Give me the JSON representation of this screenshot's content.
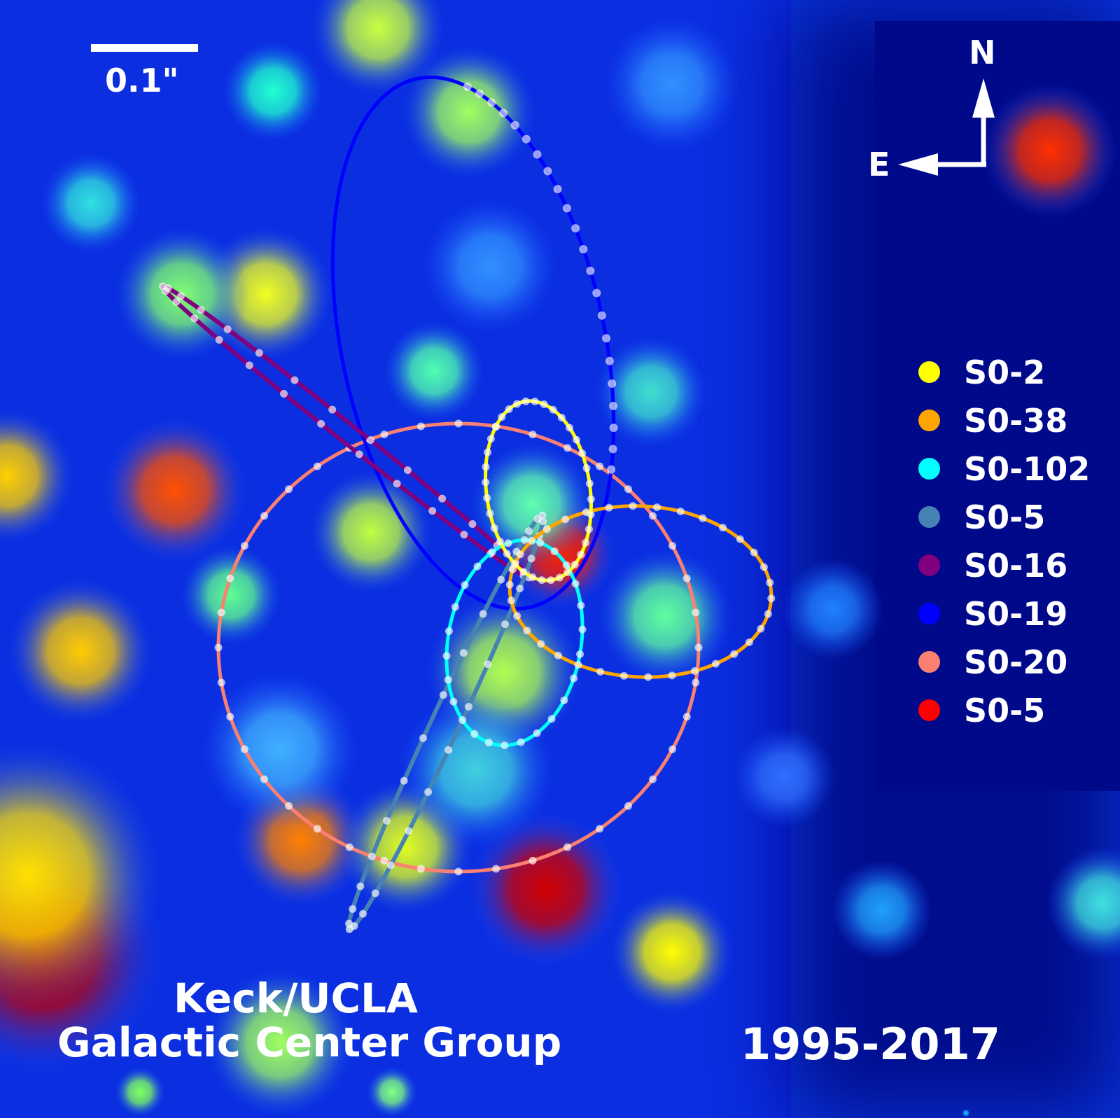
{
  "scale_bar": {
    "label": "0.1\""
  },
  "compass": {
    "north": "N",
    "east": "E"
  },
  "legend": [
    {
      "label": "S0-2",
      "color": "#ffff00"
    },
    {
      "label": "S0-38",
      "color": "#ffa500"
    },
    {
      "label": "S0-102",
      "color": "#00ffff"
    },
    {
      "label": "S0-5",
      "color": "#4682b4"
    },
    {
      "label": "S0-16",
      "color": "#800080"
    },
    {
      "label": "S0-19",
      "color": "#0000ff"
    },
    {
      "label": "S0-20",
      "color": "#fa8072"
    },
    {
      "label": "S0-5",
      "color": "#ff0000"
    }
  ],
  "credit": {
    "line1": "Keck/UCLA",
    "line2": "Galactic Center Group"
  },
  "years": "1995-2017"
}
